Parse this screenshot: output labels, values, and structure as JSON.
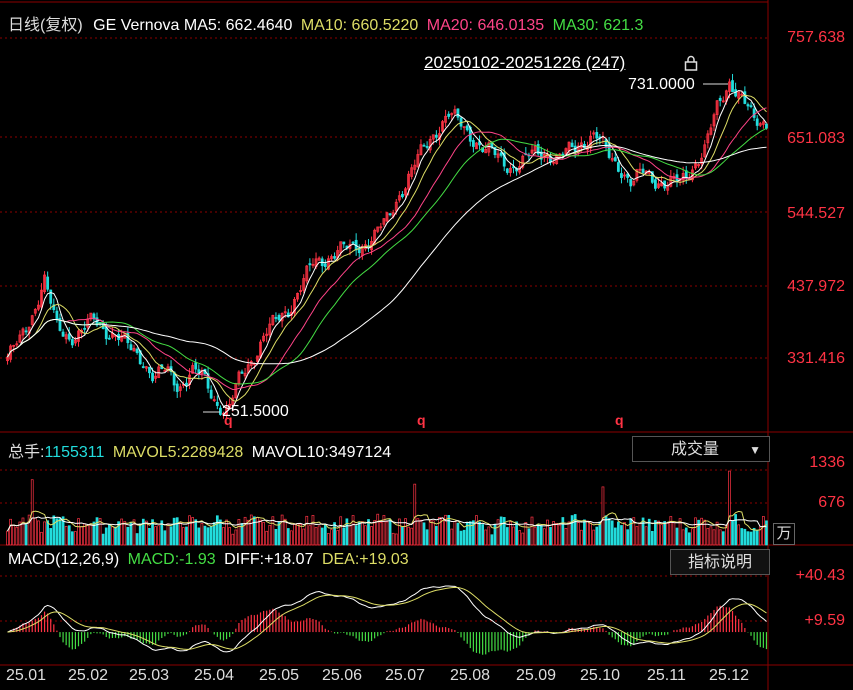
{
  "header": {
    "period": "日线(复权)",
    "name": "GE Vernova",
    "ma5_label": "MA5:",
    "ma5_value": "662.4640",
    "ma10_label": "MA10:",
    "ma10_value": "660.5220",
    "ma20_label": "MA20:",
    "ma20_value": "646.0135",
    "ma30_label": "MA30:",
    "ma30_value": "621.3"
  },
  "range_label": "20250102-20251226 (247)",
  "price_axis": [
    "757.638",
    "651.083",
    "544.527",
    "437.972",
    "331.416"
  ],
  "high_label": "731.0000",
  "low_label": "251.5000",
  "q_markers": [
    "q",
    "q",
    "q"
  ],
  "volume": {
    "total_label": "总手:",
    "total_value": "1155311",
    "mavol5_label": "MAVOL5:",
    "mavol5_value": "2289428",
    "mavol10_label": "MAVOL10:",
    "mavol10_value": "3497124",
    "selector": "成交量",
    "axis": [
      "1336",
      "676"
    ],
    "unit": "万"
  },
  "macd": {
    "label": "MACD(12,26,9)",
    "macd_label": "MACD:",
    "macd_value": "-1.93",
    "diff_label": "DIFF:",
    "diff_value": "+18.07",
    "dea_label": "DEA:",
    "dea_value": "+19.03",
    "button": "指标说明",
    "axis": [
      "+40.43",
      "+9.59"
    ]
  },
  "colors": {
    "up": "#ff3344",
    "down": "#22dddd",
    "ma5": "#ffffff",
    "ma10": "#dddd66",
    "ma20": "#ff4488",
    "ma30": "#44dd44",
    "grid": "#8b0000"
  },
  "chart_data": {
    "type": "candlestick",
    "x_ticks": [
      "25.01",
      "25.02",
      "25.03",
      "25.04",
      "25.05",
      "25.06",
      "25.07",
      "25.08",
      "25.09",
      "25.10",
      "25.11",
      "25.12"
    ],
    "ylim": [
      225,
      780
    ],
    "volume_ylim": [
      0,
      1500
    ],
    "macd_ylim": [
      -30,
      52
    ],
    "month_close_path": [
      {
        "month": "25.01",
        "close": [
          330,
          350,
          390,
          440,
          370,
          360
        ]
      },
      {
        "month": "25.02",
        "close": [
          365,
          380,
          370,
          360,
          340
        ]
      },
      {
        "month": "25.03",
        "close": [
          330,
          300,
          310,
          290,
          310,
          300
        ]
      },
      {
        "month": "25.04",
        "close": [
          270,
          252,
          300,
          330,
          360,
          380
        ]
      },
      {
        "month": "25.05",
        "close": [
          400,
          430,
          460,
          470,
          480
        ]
      },
      {
        "month": "25.06",
        "close": [
          480,
          490,
          500,
          520,
          560
        ]
      },
      {
        "month": "25.07",
        "close": [
          590,
          620,
          650,
          670,
          655
        ]
      },
      {
        "month": "25.08",
        "close": [
          640,
          620,
          610,
          600,
          600
        ]
      },
      {
        "month": "25.09",
        "close": [
          615,
          620,
          605,
          620,
          635
        ]
      },
      {
        "month": "25.10",
        "close": [
          640,
          615,
          600,
          570,
          590
        ]
      },
      {
        "month": "25.11",
        "close": [
          580,
          570,
          575,
          600,
          620
        ]
      },
      {
        "month": "25.12",
        "close": [
          680,
          720,
          690,
          660,
          662
        ]
      }
    ],
    "volume_highlights": [
      {
        "month": "25.01",
        "value": 1180
      },
      {
        "month": "25.07",
        "value": 1100
      },
      {
        "month": "25.10",
        "value": 1050
      },
      {
        "month": "25.12",
        "value": 1336
      }
    ],
    "series": [
      {
        "name": "MA5",
        "value": 662.464
      },
      {
        "name": "MA10",
        "value": 660.522
      },
      {
        "name": "MA20",
        "value": 646.0135
      },
      {
        "name": "MA30",
        "value": 621.3
      }
    ]
  }
}
